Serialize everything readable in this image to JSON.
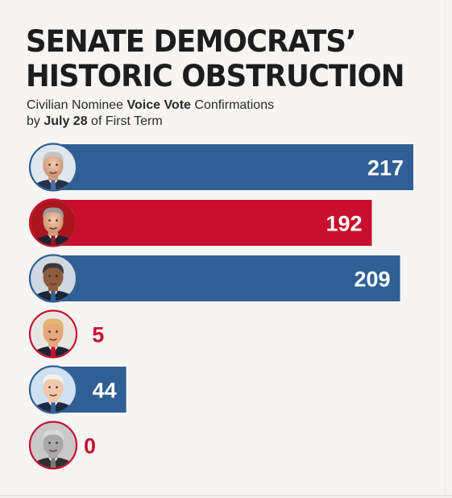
{
  "title_lines": [
    "SENATE DEMOCRATS’",
    "HISTORIC OBSTRUCTION"
  ],
  "subtitle": {
    "line1": {
      "pre": "Civilian Nominee ",
      "bold": "Voice Vote",
      "post": " Confirmations"
    },
    "line2": {
      "pre": "by ",
      "bold": "July 28",
      "post": " of First Term"
    }
  },
  "colors": {
    "blue": "#2f5f95",
    "red": "#c8102e",
    "title": "#1d1d1d"
  },
  "chart_data": {
    "type": "bar",
    "orientation": "horizontal",
    "xlim": [
      0,
      217
    ],
    "grid": false,
    "legend": "none",
    "bars": [
      {
        "value": 217,
        "color": "#2f5f95",
        "portrait": "portrait-1-icon"
      },
      {
        "value": 192,
        "color": "#c8102e",
        "portrait": "portrait-2-icon"
      },
      {
        "value": 209,
        "color": "#2f5f95",
        "portrait": "portrait-3-icon"
      },
      {
        "value": 5,
        "color": "#c8102e",
        "portrait": "portrait-4-icon"
      },
      {
        "value": 44,
        "color": "#2f5f95",
        "portrait": "portrait-5-icon"
      },
      {
        "value": 0,
        "color": "#c8102e",
        "portrait": "portrait-6-icon"
      }
    ]
  }
}
